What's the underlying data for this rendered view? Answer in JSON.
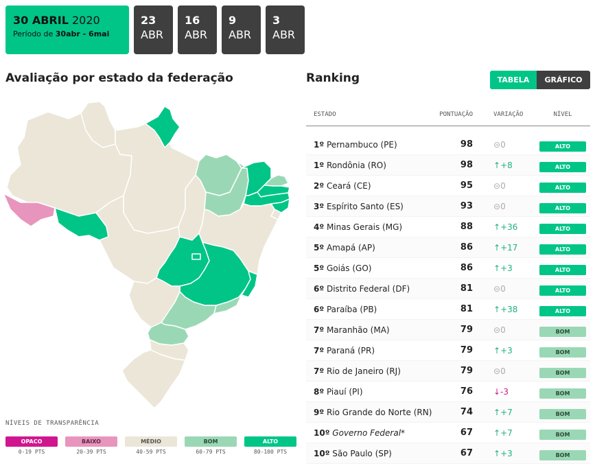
{
  "dates": {
    "current": {
      "day_month": "30 ABRIL",
      "year": "2020",
      "period_prefix": "Período de",
      "period": "30abr - 6mai"
    },
    "others": [
      {
        "day": "23",
        "month": "ABR"
      },
      {
        "day": "16",
        "month": "ABR"
      },
      {
        "day": "9",
        "month": "ABR"
      },
      {
        "day": "3",
        "month": "ABR"
      }
    ]
  },
  "map_section": {
    "title": "Avaliação por estado da federação"
  },
  "ranking_section": {
    "title": "Ranking"
  },
  "toggle": {
    "table_label": "TABELA",
    "chart_label": "GRÁFICO"
  },
  "table": {
    "headers": {
      "estado": "ESTADO",
      "pontuacao": "PONTUAÇÃO",
      "variacao": "VARIAÇÃO",
      "nivel": "NÍVEL"
    },
    "rows": [
      {
        "rank": "1º",
        "name": "Pernambuco (PE)",
        "score": "98",
        "var": "0",
        "var_dir": "zero",
        "level": "ALTO",
        "level_key": "alto"
      },
      {
        "rank": "1º",
        "name": "Rondônia (RO)",
        "score": "98",
        "var": "+8",
        "var_dir": "up",
        "level": "ALTO",
        "level_key": "alto"
      },
      {
        "rank": "2º",
        "name": "Ceará (CE)",
        "score": "95",
        "var": "0",
        "var_dir": "zero",
        "level": "ALTO",
        "level_key": "alto"
      },
      {
        "rank": "3º",
        "name": "Espírito Santo (ES)",
        "score": "93",
        "var": "0",
        "var_dir": "zero",
        "level": "ALTO",
        "level_key": "alto"
      },
      {
        "rank": "4º",
        "name": "Minas Gerais (MG)",
        "score": "88",
        "var": "+36",
        "var_dir": "up",
        "level": "ALTO",
        "level_key": "alto"
      },
      {
        "rank": "5º",
        "name": "Amapá (AP)",
        "score": "86",
        "var": "+17",
        "var_dir": "up",
        "level": "ALTO",
        "level_key": "alto"
      },
      {
        "rank": "5º",
        "name": "Goiás (GO)",
        "score": "86",
        "var": "+3",
        "var_dir": "up",
        "level": "ALTO",
        "level_key": "alto"
      },
      {
        "rank": "6º",
        "name": "Distrito Federal (DF)",
        "score": "81",
        "var": "0",
        "var_dir": "zero",
        "level": "ALTO",
        "level_key": "alto"
      },
      {
        "rank": "6º",
        "name": "Paraíba (PB)",
        "score": "81",
        "var": "+38",
        "var_dir": "up",
        "level": "ALTO",
        "level_key": "alto"
      },
      {
        "rank": "7º",
        "name": "Maranhão (MA)",
        "score": "79",
        "var": "0",
        "var_dir": "zero",
        "level": "BOM",
        "level_key": "bom"
      },
      {
        "rank": "7º",
        "name": "Paraná (PR)",
        "score": "79",
        "var": "+3",
        "var_dir": "up",
        "level": "BOM",
        "level_key": "bom"
      },
      {
        "rank": "7º",
        "name": "Rio de Janeiro (RJ)",
        "score": "79",
        "var": "0",
        "var_dir": "zero",
        "level": "BOM",
        "level_key": "bom"
      },
      {
        "rank": "8º",
        "name": "Piauí (PI)",
        "score": "76",
        "var": "-3",
        "var_dir": "down",
        "level": "BOM",
        "level_key": "bom"
      },
      {
        "rank": "9º",
        "name": "Rio Grande do Norte (RN)",
        "score": "74",
        "var": "+7",
        "var_dir": "up",
        "level": "BOM",
        "level_key": "bom"
      },
      {
        "rank": "10º",
        "name": "Governo Federal*",
        "score": "67",
        "var": "+7",
        "var_dir": "up",
        "level": "BOM",
        "level_key": "bom",
        "italic": true
      },
      {
        "rank": "10º",
        "name": "São Paulo (SP)",
        "score": "67",
        "var": "+3",
        "var_dir": "up",
        "level": "BOM",
        "level_key": "bom"
      }
    ]
  },
  "legend": {
    "title": "NÍVEIS DE TRANSPARÊNCIA",
    "items": [
      {
        "label": "OPACO",
        "range": "0-19 PTS",
        "color": "#d0168f",
        "text_color": "#ffffff"
      },
      {
        "label": "BAIXO",
        "range": "20-39 PTS",
        "color": "#e895bd",
        "text_color": "#5a2a40"
      },
      {
        "label": "MÉDIO",
        "range": "40-59 PTS",
        "color": "#ebe6d8",
        "text_color": "#555555"
      },
      {
        "label": "BOM",
        "range": "60-79 PTS",
        "color": "#9ad8b5",
        "text_color": "#2c4a3a"
      },
      {
        "label": "ALTO",
        "range": "80-100 PTS",
        "color": "#00c587",
        "text_color": "#ffffff"
      }
    ]
  },
  "colors": {
    "opaco": "#d0168f",
    "baixo": "#e895bd",
    "medio": "#ebe6d8",
    "bom": "#9ad8b5",
    "alto": "#00c587",
    "dark_tab": "#3f3f3f"
  }
}
